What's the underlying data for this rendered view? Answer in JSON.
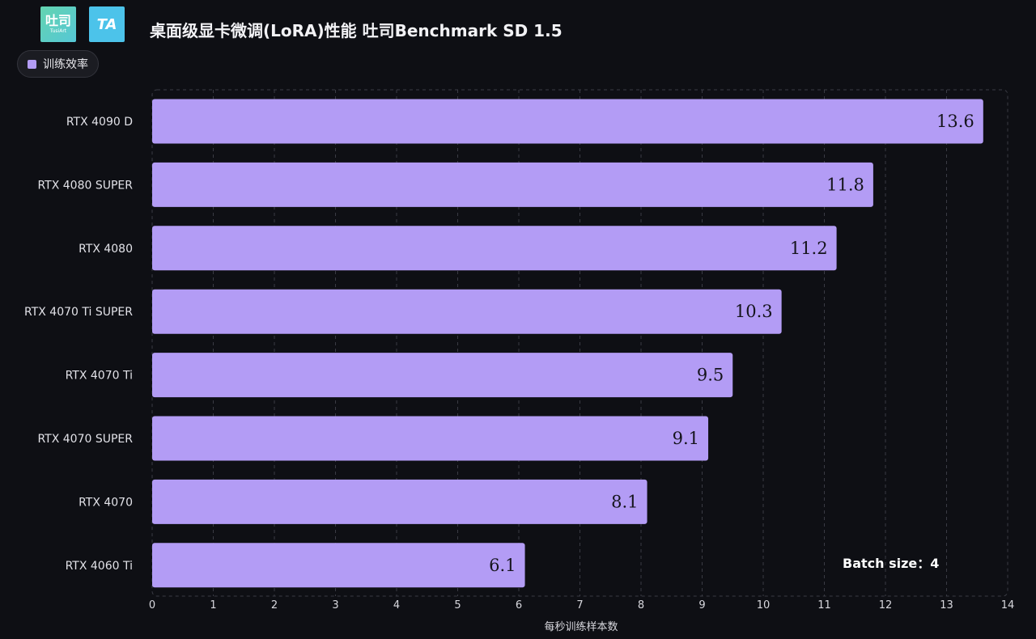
{
  "header": {
    "title": "桌面级显卡微调(LoRA)性能 吐司Benchmark SD 1.5",
    "logo_toast_main": "吐司",
    "logo_toast_sub": "TusiArt",
    "logo_ta": "TA"
  },
  "legend": {
    "label": "训练效率"
  },
  "annotation": "Batch size：4",
  "colors": {
    "background": "#0e0f14",
    "bar": "#b39cf5",
    "grid": "#3a3b44",
    "text": "#e6e6ea"
  },
  "chart_data": {
    "type": "bar",
    "orientation": "horizontal",
    "categories": [
      "RTX 4090 D",
      "RTX 4080 SUPER",
      "RTX 4080",
      "RTX 4070 Ti SUPER",
      "RTX 4070 Ti",
      "RTX 4070 SUPER",
      "RTX 4070",
      "RTX 4060 Ti"
    ],
    "series": [
      {
        "name": "训练效率",
        "values": [
          13.6,
          11.8,
          11.2,
          10.3,
          9.5,
          9.1,
          8.1,
          6.1
        ]
      }
    ],
    "xlabel": "每秒训练样本数",
    "ylabel": "",
    "xlim": [
      0,
      14
    ],
    "xticks": [
      0,
      1,
      2,
      3,
      4,
      5,
      6,
      7,
      8,
      9,
      10,
      11,
      12,
      13,
      14
    ],
    "grid": true,
    "legend_position": "top-left"
  }
}
